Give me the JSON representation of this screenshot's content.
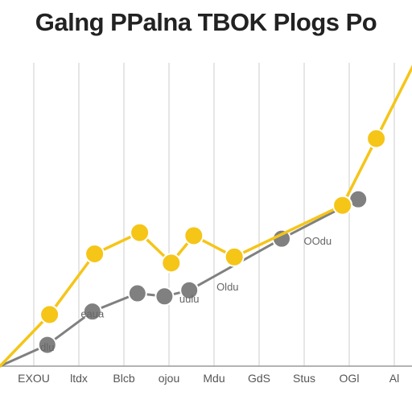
{
  "chart_data": {
    "type": "line",
    "title": "Galng PPalna TBOK Plogs Po",
    "xlabel": "",
    "ylabel": "",
    "categories": [
      "EXOU",
      "ltdx",
      "Blcb",
      "ojou",
      "Mdu",
      "GdS",
      "Stus",
      "OGl",
      "Al"
    ],
    "ylim": [
      0,
      100
    ],
    "grid": {
      "vertical": true,
      "horizontal": false
    },
    "series": [
      {
        "color": "#F5C518",
        "x": [
          0.35,
          1.35,
          2.35,
          3.05,
          3.55,
          4.45,
          6.85,
          7.6
        ],
        "values": [
          17,
          37,
          44,
          34,
          43,
          36,
          53,
          75
        ]
      },
      {
        "color": "#808080",
        "x": [
          0.3,
          1.3,
          2.3,
          2.9,
          3.45,
          5.5,
          7.2
        ],
        "values": [
          7,
          18,
          24,
          23,
          25,
          42,
          55
        ]
      }
    ],
    "annotations": [
      {
        "text": "dlu",
        "x": 0.3,
        "y": 5
      },
      {
        "text": "eaua",
        "x": 1.3,
        "y": 16
      },
      {
        "text": "uulu",
        "x": 3.45,
        "y": 21
      },
      {
        "text": "Oldu",
        "x": 4.3,
        "y": 25
      },
      {
        "text": "OOdu",
        "x": 6.3,
        "y": 40
      }
    ]
  }
}
